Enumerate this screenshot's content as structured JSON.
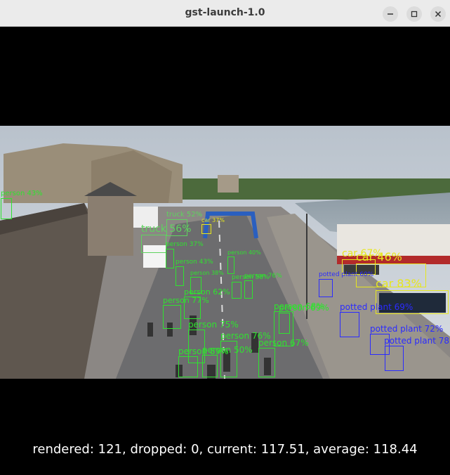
{
  "window": {
    "title": "gst-launch-1.0",
    "controls": {
      "minimize_icon": "minimize-icon",
      "maximize_icon": "maximize-icon",
      "close_icon": "close-icon"
    }
  },
  "stats": {
    "rendered_label": "rendered:",
    "rendered": "121",
    "dropped_label": "dropped:",
    "dropped": "0",
    "current_label": "current:",
    "current": "117.51",
    "average_label": "average:",
    "average": "118.44"
  },
  "colors": {
    "person": "#2fe32f",
    "car": "#e6e61e",
    "truck": "#5fd35f",
    "potted_plant": "#2b2bff"
  },
  "detections": [
    {
      "cls": "person",
      "text": "person 43%"
    },
    {
      "cls": "truck",
      "text": "truck 52%"
    },
    {
      "cls": "truck",
      "text": "truck 56%"
    },
    {
      "cls": "car",
      "text": "car 37%"
    },
    {
      "cls": "person",
      "text": "person 37%"
    },
    {
      "cls": "person",
      "text": "person 43%"
    },
    {
      "cls": "person",
      "text": "person 40%"
    },
    {
      "cls": "person",
      "text": "person 38%"
    },
    {
      "cls": "person",
      "text": "person 58%"
    },
    {
      "cls": "person",
      "text": "person 76%"
    },
    {
      "cls": "person",
      "text": "person 62%"
    },
    {
      "cls": "person",
      "text": "person 77%"
    },
    {
      "cls": "person",
      "text": "person 75%"
    },
    {
      "cls": "person",
      "text": "person 76%"
    },
    {
      "cls": "person",
      "text": "person 89%"
    },
    {
      "cls": "person",
      "text": "person 68%"
    },
    {
      "cls": "person",
      "text": "person 50%"
    },
    {
      "cls": "person",
      "text": "person 67%"
    },
    {
      "cls": "person",
      "text": "person 69%"
    },
    {
      "cls": "car",
      "text": "car 67%"
    },
    {
      "cls": "car",
      "text": "car 46%"
    },
    {
      "cls": "car",
      "text": "car 83%"
    },
    {
      "cls": "potted_plant",
      "text": "potted plant 60%"
    },
    {
      "cls": "potted_plant",
      "text": "potted plant 69%"
    },
    {
      "cls": "potted_plant",
      "text": "potted plant 72%"
    },
    {
      "cls": "potted_plant",
      "text": "potted plant 78"
    }
  ]
}
